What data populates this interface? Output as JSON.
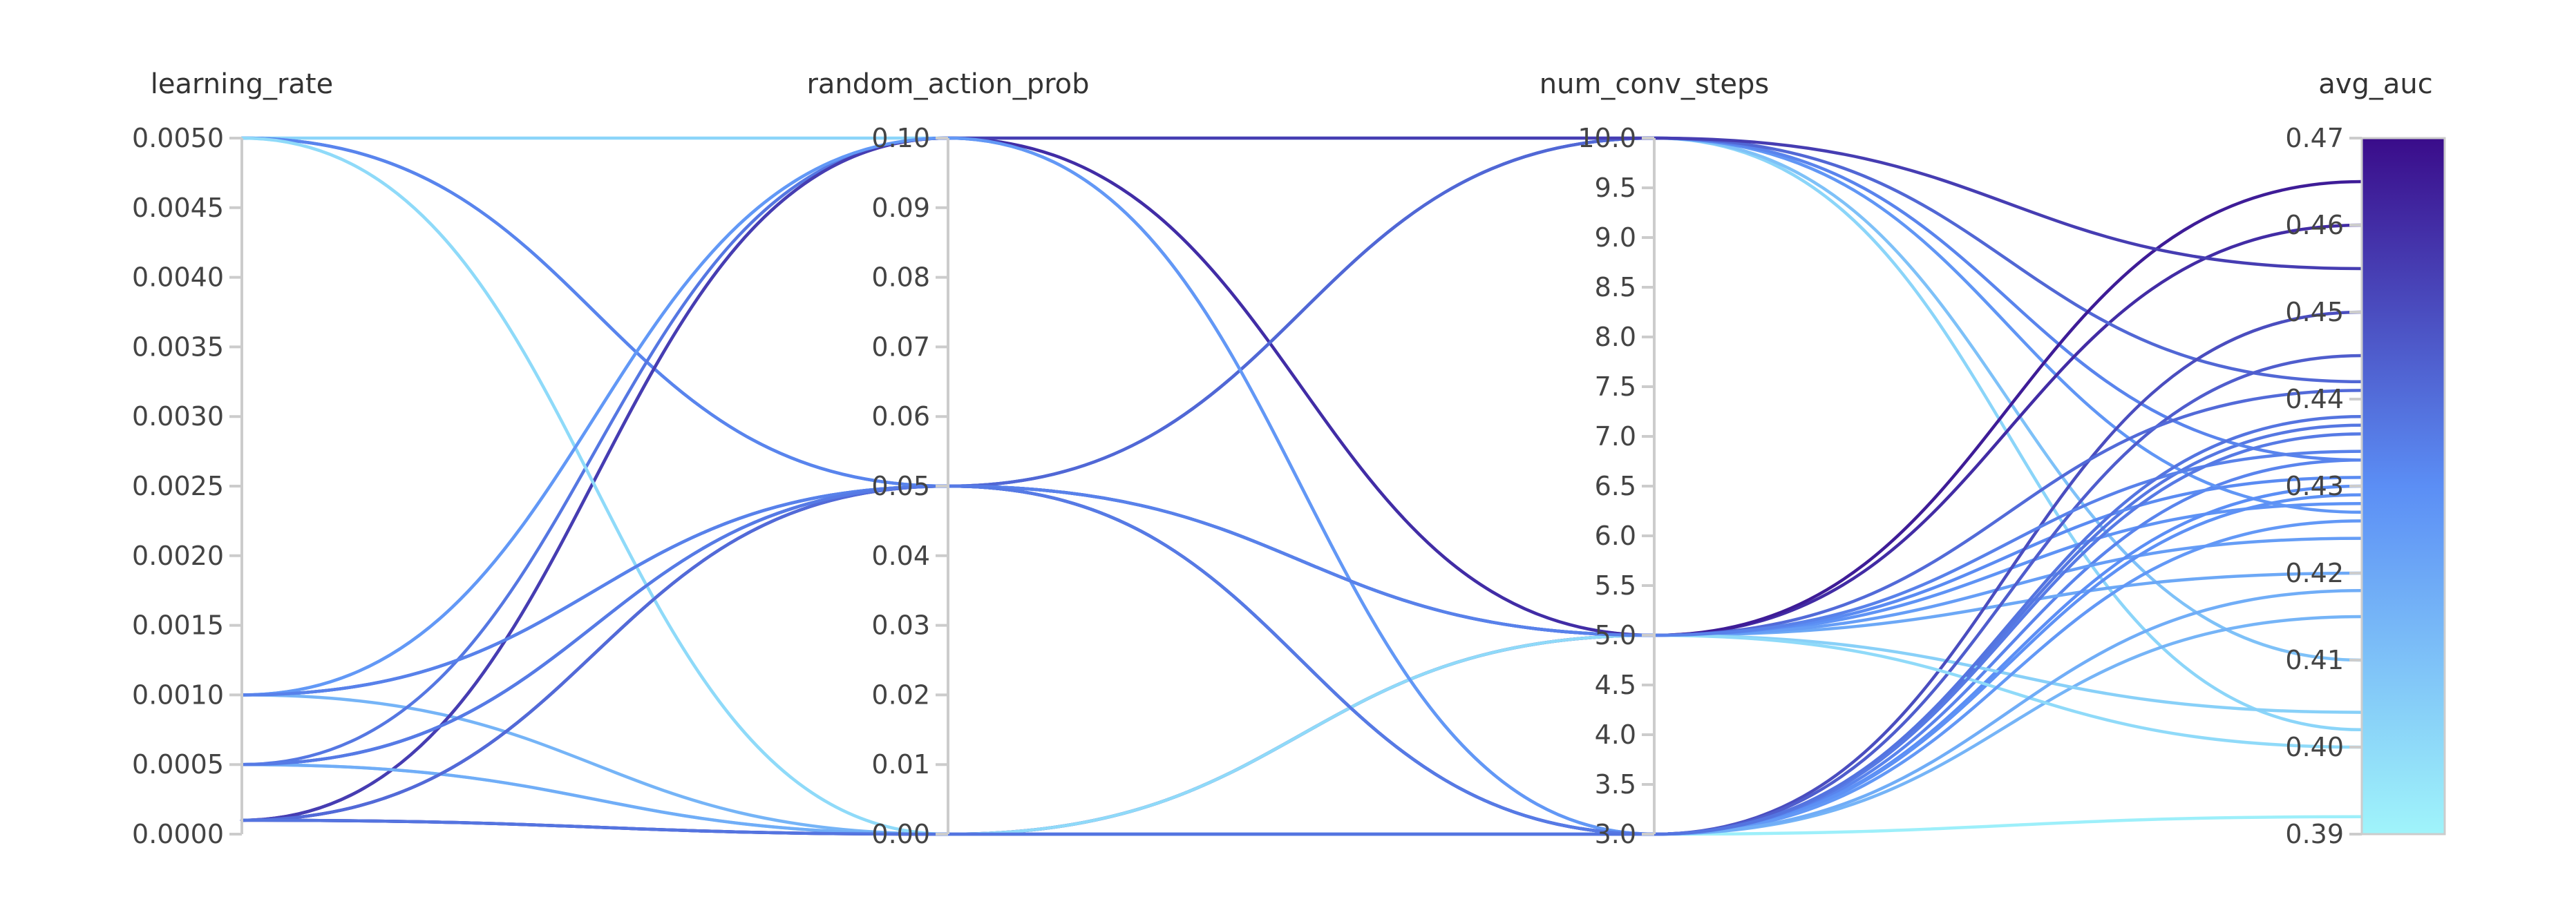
{
  "chart_data": {
    "type": "parallel_coordinates",
    "axes": [
      {
        "name": "learning_rate",
        "range": [
          0.0,
          0.005
        ],
        "ticks": [
          "0.0000",
          "0.0005",
          "0.0010",
          "0.0015",
          "0.0020",
          "0.0025",
          "0.0030",
          "0.0035",
          "0.0040",
          "0.0045",
          "0.0050"
        ]
      },
      {
        "name": "random_action_prob",
        "range": [
          0.0,
          0.1
        ],
        "ticks": [
          "0.00",
          "0.01",
          "0.02",
          "0.03",
          "0.04",
          "0.05",
          "0.06",
          "0.07",
          "0.08",
          "0.09",
          "0.10"
        ]
      },
      {
        "name": "num_conv_steps",
        "range": [
          3.0,
          10.0
        ],
        "ticks": [
          "3.0",
          "3.5",
          "4.0",
          "4.5",
          "5.0",
          "5.5",
          "6.0",
          "6.5",
          "7.0",
          "7.5",
          "8.0",
          "8.5",
          "9.0",
          "9.5",
          "10.0"
        ]
      },
      {
        "name": "avg_auc",
        "range": [
          0.39,
          0.47
        ],
        "ticks": [
          "0.39",
          "0.40",
          "0.41",
          "0.42",
          "0.43",
          "0.44",
          "0.45",
          "0.46",
          "0.47"
        ]
      }
    ],
    "color_metric": "avg_auc",
    "color_scale": {
      "low": "#a0f4fa",
      "mid": "#5b8ef5",
      "high": "#3a0c8a"
    },
    "runs": [
      [
        0.005,
        0.1,
        10.0,
        0.402
      ],
      [
        0.005,
        0.0,
        3.0,
        0.392
      ],
      [
        0.005,
        0.05,
        10.0,
        0.41
      ],
      [
        0.005,
        0.05,
        5.0,
        0.428
      ],
      [
        0.005,
        0.05,
        3.0,
        0.433
      ],
      [
        0.001,
        0.1,
        5.0,
        0.42
      ],
      [
        0.001,
        0.05,
        5.0,
        0.424
      ],
      [
        0.001,
        0.05,
        10.0,
        0.427
      ],
      [
        0.001,
        0.0,
        3.0,
        0.415
      ],
      [
        0.001,
        0.05,
        3.0,
        0.43
      ],
      [
        0.0005,
        0.1,
        3.0,
        0.437
      ],
      [
        0.0005,
        0.05,
        5.0,
        0.431
      ],
      [
        0.0005,
        0.05,
        10.0,
        0.433
      ],
      [
        0.0005,
        0.0,
        5.0,
        0.404
      ],
      [
        0.0005,
        0.05,
        3.0,
        0.429
      ],
      [
        0.0001,
        0.1,
        5.0,
        0.46
      ],
      [
        0.0001,
        0.05,
        10.0,
        0.442
      ],
      [
        0.0001,
        0.05,
        3.0,
        0.45
      ],
      [
        0.0001,
        0.0,
        5.0,
        0.465
      ],
      [
        0.0001,
        0.0,
        3.0,
        0.445
      ],
      [
        0.0001,
        0.1,
        10.0,
        0.455
      ],
      [
        0.005,
        0.0,
        5.0,
        0.4
      ],
      [
        0.001,
        0.1,
        3.0,
        0.426
      ],
      [
        0.0005,
        0.0,
        3.0,
        0.418
      ],
      [
        0.0001,
        0.05,
        5.0,
        0.441
      ],
      [
        0.001,
        0.05,
        5.0,
        0.434
      ],
      [
        0.0005,
        0.05,
        3.0,
        0.436
      ],
      [
        0.0001,
        0.0,
        3.0,
        0.438
      ]
    ]
  }
}
